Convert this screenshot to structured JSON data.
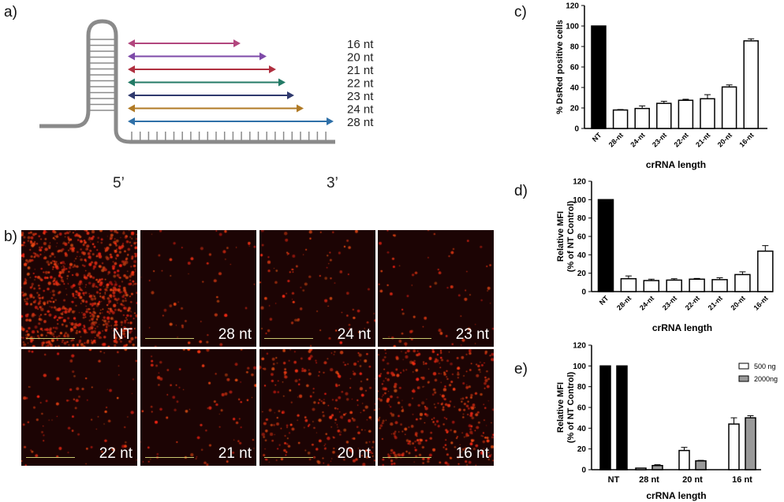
{
  "panel_labels": {
    "a": "a)",
    "b": "b)",
    "c": "c)",
    "d": "d)",
    "e": "e)"
  },
  "diagram": {
    "end5": "5’",
    "end3": "3’",
    "arrows": [
      {
        "label": "16 nt",
        "color": "#b2467e"
      },
      {
        "label": "20 nt",
        "color": "#7e4aa8"
      },
      {
        "label": "21 nt",
        "color": "#b03040"
      },
      {
        "label": "22 nt",
        "color": "#237a66"
      },
      {
        "label": "23 nt",
        "color": "#2f3a6e"
      },
      {
        "label": "24 nt",
        "color": "#b07a25"
      },
      {
        "label": "28 nt",
        "color": "#2f70a8"
      }
    ]
  },
  "micrographs": [
    {
      "label": "NT"
    },
    {
      "label": "28 nt"
    },
    {
      "label": "24 nt"
    },
    {
      "label": "23 nt"
    },
    {
      "label": "22 nt"
    },
    {
      "label": "21 nt"
    },
    {
      "label": "20 nt"
    },
    {
      "label": "16 nt"
    }
  ],
  "chart_data": [
    {
      "type": "bar",
      "ylabel": "% DsRed positive cells",
      "xlabel": "crRNA length",
      "ylim": [
        0,
        120
      ],
      "yticks": [
        "0",
        "20",
        "40",
        "60",
        "80",
        "100",
        "120"
      ],
      "categories": [
        "NT",
        "28-nt",
        "24-nt",
        "23-nt",
        "22-nt",
        "21-nt",
        "20-nt",
        "16-nt"
      ],
      "values": [
        100,
        18,
        19.5,
        24.5,
        27.5,
        29,
        40.5,
        85.5
      ],
      "errors": [
        0,
        0.5,
        2.5,
        2,
        1,
        4,
        2,
        2
      ],
      "colors": [
        "#000000",
        "#ffffff",
        "#ffffff",
        "#ffffff",
        "#ffffff",
        "#ffffff",
        "#ffffff",
        "#ffffff"
      ]
    },
    {
      "type": "bar",
      "ylabel": "Relative MFI",
      "ylabel2": "(% of NT Control)",
      "xlabel": "crRNA length",
      "ylim": [
        0,
        120
      ],
      "yticks": [
        "0",
        "20",
        "40",
        "60",
        "80",
        "100",
        "120"
      ],
      "categories": [
        "NT",
        "28-nt",
        "24-nt",
        "23-nt",
        "22-nt",
        "21-nt",
        "20-nt",
        "16-nt"
      ],
      "values": [
        100,
        14,
        12,
        12.5,
        13.5,
        13,
        18.5,
        44
      ],
      "errors": [
        0,
        3,
        1.5,
        1.5,
        0.8,
        2,
        3,
        6
      ],
      "colors": [
        "#000000",
        "#ffffff",
        "#ffffff",
        "#ffffff",
        "#ffffff",
        "#ffffff",
        "#ffffff",
        "#ffffff"
      ]
    },
    {
      "type": "bar",
      "ylabel": "Relative MFI",
      "ylabel2": "(% of NT Control)",
      "xlabel": "crRNA length",
      "ylim": [
        0,
        120
      ],
      "yticks": [
        "0",
        "20",
        "40",
        "60",
        "80",
        "100",
        "120"
      ],
      "categories": [
        "NT",
        "28 nt",
        "20 nt",
        "16 nt"
      ],
      "legend_position": "top-right",
      "series": [
        {
          "name": "500 ng",
          "color": "#ffffff",
          "values": [
            100,
            1.5,
            18.5,
            44
          ],
          "errors": [
            0,
            0,
            3,
            6
          ]
        },
        {
          "name": "2000ng",
          "color": "#999999",
          "values": [
            100,
            4,
            8.5,
            50
          ],
          "errors": [
            0,
            0.8,
            0.5,
            2
          ]
        }
      ],
      "nt_color": "#000000"
    }
  ]
}
